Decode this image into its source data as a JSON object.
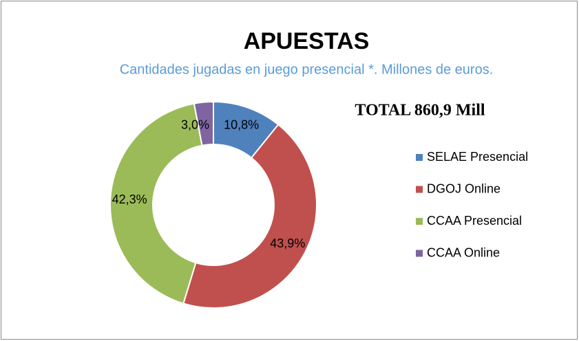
{
  "chart_data": {
    "type": "donut",
    "title": "APUESTAS",
    "subtitle": "Cantidades jugadas en juego presencial *. Millones de euros.",
    "annotation": "TOTAL 860,9 Mill",
    "categories": [
      "SELAE Presencial",
      "DGOJ Online",
      "CCAA Presencial",
      "CCAA Online"
    ],
    "values": [
      10.8,
      43.9,
      42.3,
      3.0
    ],
    "value_labels": [
      "10,8%",
      "43,9%",
      "42,3%",
      "3,0%"
    ],
    "colors": [
      "#4f81bd",
      "#c0504d",
      "#9bbb59",
      "#8064a2"
    ],
    "legend": "right"
  }
}
